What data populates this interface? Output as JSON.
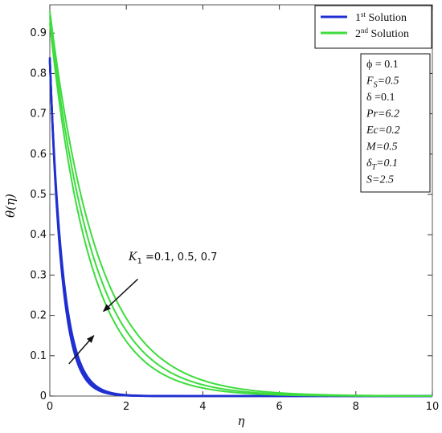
{
  "chart_data": {
    "type": "line",
    "xlabel": "η",
    "ylabel": "θ(η)",
    "xlim": [
      0,
      10
    ],
    "ylim": [
      0,
      0.95
    ],
    "x_ticks": [
      "0",
      "2",
      "4",
      "6",
      "8",
      "10"
    ],
    "y_ticks": [
      "0",
      "0.1",
      "0.2",
      "0.3",
      "0.4",
      "0.5",
      "0.6",
      "0.7",
      "0.8",
      "0.9"
    ],
    "x_tick_values": [
      0,
      2,
      4,
      6,
      8,
      10
    ],
    "y_tick_values": [
      0,
      0.1,
      0.2,
      0.3,
      0.4,
      0.5,
      0.6,
      0.7,
      0.8,
      0.9
    ],
    "legend": {
      "placement": "top-right",
      "entries": [
        {
          "label": "1st Solution",
          "main": "1",
          "sup": "st",
          "rest": " Solution",
          "color": "#1f2fd0"
        },
        {
          "label": "2nd Solution",
          "main": "2",
          "sup": "nd",
          "rest": " Solution",
          "color": "#3ddc3d"
        }
      ]
    },
    "series": [
      {
        "name": "1st Solution",
        "group": "first",
        "color": "#1f2fd0",
        "theta0": 0.84,
        "rate": 3.2
      },
      {
        "name": "1st Solution",
        "group": "first",
        "color": "#1f2fd0",
        "theta0": 0.835,
        "rate": 3.05
      },
      {
        "name": "1st Solution",
        "group": "first",
        "color": "#1f2fd0",
        "theta0": 0.83,
        "rate": 2.9
      },
      {
        "name": "2nd Solution",
        "group": "second",
        "color": "#3ddc3d",
        "theta0": 0.955,
        "rate": 0.8
      },
      {
        "name": "2nd Solution",
        "group": "second",
        "color": "#3ddc3d",
        "theta0": 0.94,
        "rate": 0.88
      },
      {
        "name": "2nd Solution",
        "group": "second",
        "color": "#3ddc3d",
        "theta0": 0.925,
        "rate": 0.96
      }
    ],
    "parameters": [
      {
        "sym": "ϕ",
        "sub": "",
        "val": " = 0.1",
        "italic": false
      },
      {
        "sym": "F",
        "sub": "S",
        "val": "=0.5",
        "italic": true
      },
      {
        "sym": "δ",
        "sub": "",
        "val": " =0.1",
        "italic": false
      },
      {
        "sym": "Pr",
        "sub": "",
        "val": "=6.2",
        "italic": true
      },
      {
        "sym": "Ec",
        "sub": "",
        "val": "=0.2",
        "italic": true
      },
      {
        "sym": "M",
        "sub": "",
        "val": "=0.5",
        "italic": true
      },
      {
        "sym": "δ",
        "sub": "T",
        "val": "=0.1",
        "italic": true
      },
      {
        "sym": "S",
        "sub": "",
        "val": "=2.5",
        "italic": true
      }
    ],
    "annotation": {
      "sym": "K",
      "sub": "1",
      "text": " =0.1, 0.5, 0.7",
      "arrows": [
        {
          "from": [
            2.3,
            0.29
          ],
          "to": [
            1.4,
            0.21
          ]
        },
        {
          "from": [
            0.5,
            0.08
          ],
          "to": [
            1.15,
            0.15
          ]
        }
      ]
    }
  }
}
